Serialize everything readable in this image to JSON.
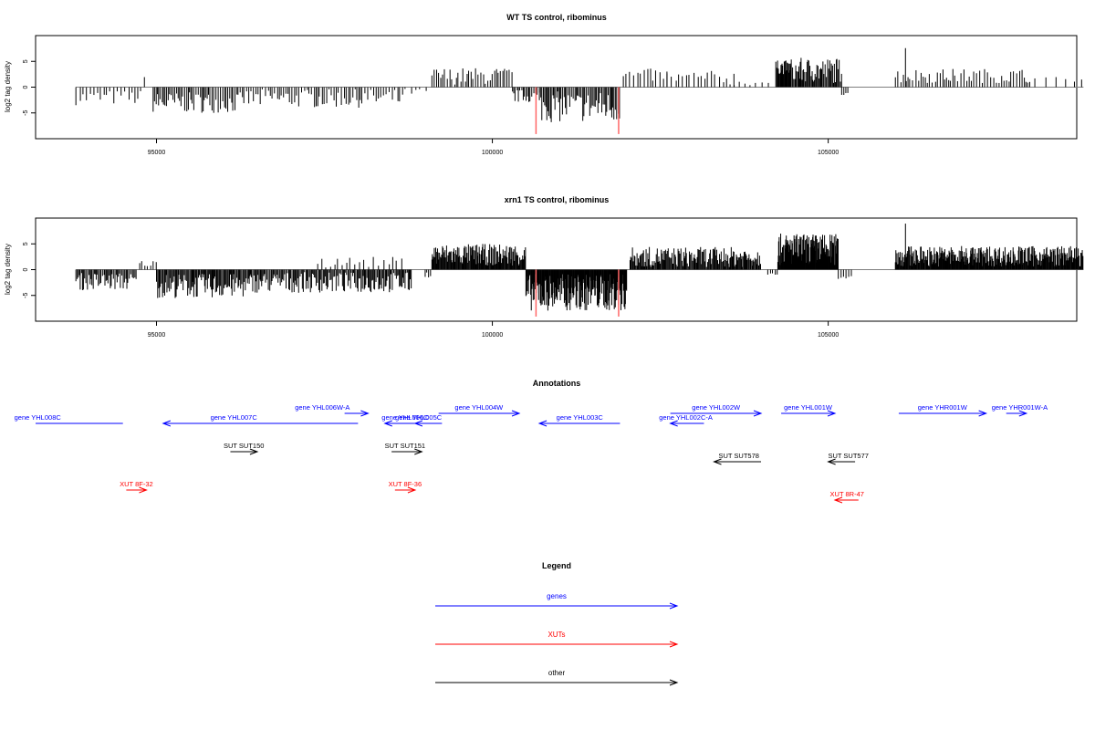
{
  "colors": {
    "gene": "#0000ff",
    "xut": "#ff0000",
    "other": "#000000",
    "highlight": "#ff6666",
    "axis": "#000000",
    "baseline": "#7f7f7f"
  },
  "chart_data": [
    {
      "type": "bar",
      "title": "WT TS control, ribominus",
      "ylabel": "log2 tag density",
      "xlim": [
        93200,
        108700
      ],
      "ylim": [
        -10,
        10
      ],
      "xticks": [
        95000,
        100000,
        105000
      ],
      "xtick_labels": [
        "95000",
        "100000",
        "105000"
      ],
      "yticks": [
        -5,
        0,
        5
      ],
      "ytick_labels": [
        "-5",
        "0",
        "5"
      ],
      "baseline": {
        "x": [
          93800,
          108800
        ],
        "y": 0
      },
      "highlight_bars": [
        {
          "x": 100650,
          "y": -9.1
        },
        {
          "x": 101880,
          "y": -9.1
        }
      ],
      "segments": [
        {
          "x": [
            93800,
            94800
          ],
          "range": [
            -3.5,
            -0.6
          ],
          "step": 50
        },
        {
          "x": [
            94820,
            94860
          ],
          "range": [
            1.8,
            2.0
          ],
          "step": 50
        },
        {
          "x": [
            94950,
            96300
          ],
          "range": [
            -5.0,
            -1.0
          ],
          "step": 25
        },
        {
          "x": [
            96300,
            98700
          ],
          "range": [
            -4.0,
            -0.4
          ],
          "step": 35
        },
        {
          "x": [
            98700,
            99100
          ],
          "range": [
            -1.5,
            -0.3
          ],
          "step": 80
        },
        {
          "x": [
            99100,
            100300
          ],
          "range": [
            0.5,
            3.8
          ],
          "step": 35
        },
        {
          "x": [
            100300,
            100700
          ],
          "range": [
            -3.0,
            -0.5
          ],
          "step": 25
        },
        {
          "x": [
            100700,
            101900
          ],
          "range": [
            -6.8,
            -0.8
          ],
          "step": 20
        },
        {
          "x": [
            101950,
            102600
          ],
          "range": [
            1.0,
            3.6
          ],
          "step": 50
        },
        {
          "x": [
            102600,
            103600
          ],
          "range": [
            0.4,
            3.2
          ],
          "step": 55
        },
        {
          "x": [
            103600,
            104200
          ],
          "range": [
            0.3,
            1.5
          ],
          "step": 90
        },
        {
          "x": [
            104220,
            104450
          ],
          "range": [
            2.5,
            5.2
          ],
          "step": 10
        },
        {
          "x": [
            104450,
            105200
          ],
          "range": [
            0.8,
            5.7
          ],
          "step": 14
        },
        {
          "x": [
            105200,
            105300
          ],
          "range": [
            -1.6,
            -0.4
          ],
          "step": 35
        },
        {
          "x": [
            106000,
            108000
          ],
          "range": [
            0.8,
            3.6
          ],
          "step": 38
        },
        {
          "x": [
            106150,
            106170
          ],
          "range": [
            7.5,
            7.6
          ],
          "step": 40
        },
        {
          "x": [
            108000,
            108800
          ],
          "range": [
            1.0,
            2.0
          ],
          "step": 120
        }
      ]
    },
    {
      "type": "bar",
      "title": "xrn1 TS control, ribominus",
      "ylabel": "log2 tag density",
      "xlim": [
        93200,
        108700
      ],
      "ylim": [
        -10,
        10
      ],
      "xticks": [
        95000,
        100000,
        105000
      ],
      "xtick_labels": [
        "95000",
        "100000",
        "105000"
      ],
      "yticks": [
        -5,
        0,
        5
      ],
      "ytick_labels": [
        "-5",
        "0",
        "5"
      ],
      "baseline": {
        "x": [
          93800,
          108800
        ],
        "y": 0
      },
      "highlight_bars": [
        {
          "x": 100650,
          "y": -9.1
        },
        {
          "x": 101880,
          "y": -9.1
        }
      ],
      "segments": [
        {
          "x": [
            93800,
            94700
          ],
          "range": [
            -4.0,
            -0.6
          ],
          "step": 18
        },
        {
          "x": [
            94750,
            95000
          ],
          "range": [
            0.5,
            1.8
          ],
          "step": 40
        },
        {
          "x": [
            95000,
            96400
          ],
          "range": [
            -5.5,
            -0.8
          ],
          "step": 14
        },
        {
          "x": [
            96400,
            98800
          ],
          "range": [
            -4.5,
            -0.5
          ],
          "step": 16
        },
        {
          "x": [
            97400,
            98700
          ],
          "range": [
            0.4,
            2.5
          ],
          "step": 60
        },
        {
          "x": [
            99000,
            99100
          ],
          "range": [
            -1.5,
            -0.5
          ],
          "step": 30
        },
        {
          "x": [
            99100,
            100500
          ],
          "range": [
            0.8,
            5.0
          ],
          "step": 10
        },
        {
          "x": [
            100500,
            102000
          ],
          "range": [
            -8.0,
            -0.8
          ],
          "step": 8
        },
        {
          "x": [
            102050,
            104000
          ],
          "range": [
            0.5,
            4.4
          ],
          "step": 12
        },
        {
          "x": [
            104100,
            104250
          ],
          "range": [
            -1.0,
            -0.3
          ],
          "step": 35
        },
        {
          "x": [
            104250,
            105150
          ],
          "range": [
            0.8,
            7.0
          ],
          "step": 7
        },
        {
          "x": [
            105150,
            105350
          ],
          "range": [
            -2.0,
            -0.5
          ],
          "step": 30
        },
        {
          "x": [
            106000,
            108800
          ],
          "range": [
            0.6,
            4.6
          ],
          "step": 9
        },
        {
          "x": [
            106150,
            106170
          ],
          "range": [
            8.8,
            9.0
          ],
          "step": 40
        }
      ]
    }
  ],
  "annotations": {
    "title": "Annotations",
    "items": [
      {
        "label": "gene YHL008C",
        "color": "gene",
        "row": "a",
        "dir": "none",
        "x1": 93200,
        "x2": 94500,
        "lx": 93230
      },
      {
        "label": "gene YHL007C",
        "color": "gene",
        "row": "a",
        "dir": "left",
        "x1": 95100,
        "x2": 98000,
        "lx": 96150
      },
      {
        "label": "gene YHL006W-A",
        "color": "gene",
        "row": "b",
        "dir": "right",
        "x1": 97800,
        "x2": 98150,
        "lx": 97470
      },
      {
        "label": "gene YHL006C",
        "color": "gene",
        "row": "a",
        "dir": "left",
        "x1": 98400,
        "x2": 98850,
        "lx": 98700
      },
      {
        "label": "gene YHL005C",
        "color": "gene",
        "row": "a",
        "dir": "left",
        "x1": 98850,
        "x2": 99250,
        "lx": 98900
      },
      {
        "label": "gene YHL004W",
        "color": "gene",
        "row": "b",
        "dir": "right",
        "x1": 99200,
        "x2": 100400,
        "lx": 99800
      },
      {
        "label": "gene YHL003C",
        "color": "gene",
        "row": "a",
        "dir": "left",
        "x1": 100700,
        "x2": 101900,
        "lx": 101300
      },
      {
        "label": "gene YHL002C-A",
        "color": "gene",
        "row": "a",
        "dir": "left",
        "x1": 102650,
        "x2": 103150,
        "lx": 102880
      },
      {
        "label": "gene YHL002W",
        "color": "gene",
        "row": "b",
        "dir": "right",
        "x1": 102650,
        "x2": 104000,
        "lx": 103330
      },
      {
        "label": "gene YHL001W",
        "color": "gene",
        "row": "b",
        "dir": "right",
        "x1": 104300,
        "x2": 105100,
        "lx": 104700
      },
      {
        "label": "gene YHR001W",
        "color": "gene",
        "row": "b",
        "dir": "right",
        "x1": 106050,
        "x2": 107350,
        "lx": 106700
      },
      {
        "label": "gene YHR001W-A",
        "color": "gene",
        "row": "b",
        "dir": "right",
        "x1": 107650,
        "x2": 107950,
        "lx": 107850
      },
      {
        "label": "SUT SUT150",
        "color": "other",
        "row": "c",
        "dir": "right",
        "x1": 96100,
        "x2": 96500,
        "lx": 96300
      },
      {
        "label": "SUT SUT151",
        "color": "other",
        "row": "c",
        "dir": "right",
        "x1": 98500,
        "x2": 98950,
        "lx": 98700
      },
      {
        "label": "SUT SUT578",
        "color": "other",
        "row": "d",
        "dir": "left",
        "x1": 103300,
        "x2": 104000,
        "lx": 103670
      },
      {
        "label": "SUT SUT577",
        "color": "other",
        "row": "d",
        "dir": "left",
        "x1": 105000,
        "x2": 105400,
        "lx": 105300
      },
      {
        "label": "XUT 8F-32",
        "color": "xut",
        "row": "e",
        "dir": "right",
        "x1": 94550,
        "x2": 94850,
        "lx": 94700
      },
      {
        "label": "XUT 8F-36",
        "color": "xut",
        "row": "e",
        "dir": "right",
        "x1": 98550,
        "x2": 98850,
        "lx": 98700
      },
      {
        "label": "XUT 8R-47",
        "color": "xut",
        "row": "f",
        "dir": "left",
        "x1": 105100,
        "x2": 105450,
        "lx": 105280
      }
    ]
  },
  "legend": {
    "title": "Legend",
    "items": [
      {
        "label": "genes",
        "color": "gene"
      },
      {
        "label": "XUTs",
        "color": "xut"
      },
      {
        "label": "other",
        "color": "other"
      }
    ]
  }
}
